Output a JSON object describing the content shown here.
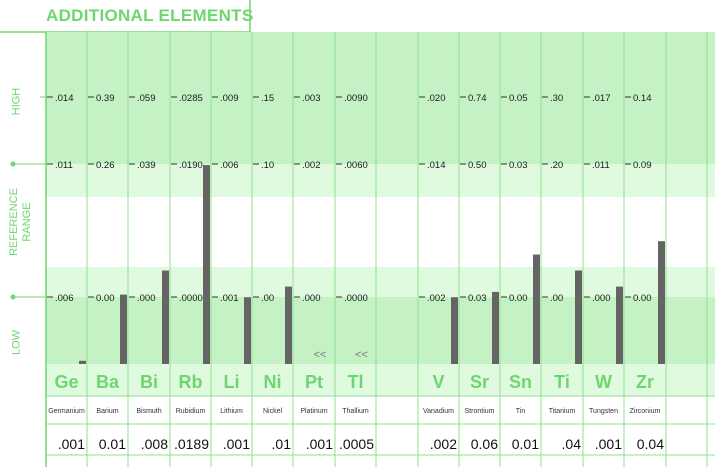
{
  "chart_data": {
    "type": "bar",
    "title": "ADDITIONAL ELEMENTS",
    "band_labels": {
      "high": "HIGH",
      "range_line1": "REFERENCE",
      "range_line2": "RANGE",
      "low": "LOW"
    },
    "colors": {
      "accent": "#6ed66e",
      "band_dark": "#c5f2c5",
      "band_mid": "#e0fae0",
      "bar": "#646464",
      "divider": "#8fe08f"
    },
    "scale_note": "Bar values are expressed as position within the reference layout (0 = bottom, 1 = top of HIGH band).",
    "elements": [
      {
        "symbol": "Ge",
        "name": "Germanium",
        "high": ".014",
        "ref_high": ".011",
        "ref_low": ".006",
        "result": ".001",
        "bar": 0.012,
        "flag": ""
      },
      {
        "symbol": "Ba",
        "name": "Barium",
        "high": "0.39",
        "ref_high": "0.26",
        "ref_low": "0.00",
        "result": "0.01",
        "bar": 0.26,
        "flag": ""
      },
      {
        "symbol": "Bi",
        "name": "Bismuth",
        "high": ".059",
        "ref_high": ".039",
        "ref_low": ".000",
        "result": ".008",
        "bar": 0.35,
        "flag": ""
      },
      {
        "symbol": "Rb",
        "name": "Rubidium",
        "high": ".0285",
        "ref_high": ".0190",
        "ref_low": ".0000",
        "result": ".0189",
        "bar": 0.745,
        "flag": ""
      },
      {
        "symbol": "Li",
        "name": "Lithium",
        "high": ".009",
        "ref_high": ".006",
        "ref_low": ".001",
        "result": ".001",
        "bar": 0.25,
        "flag": ""
      },
      {
        "symbol": "Ni",
        "name": "Nickel",
        "high": ".15",
        "ref_high": ".10",
        "ref_low": ".00",
        "result": ".01",
        "bar": 0.29,
        "flag": ""
      },
      {
        "symbol": "Pt",
        "name": "Platinum",
        "high": ".003",
        "ref_high": ".002",
        "ref_low": ".000",
        "result": ".001",
        "bar": 0,
        "flag": "<<"
      },
      {
        "symbol": "Tl",
        "name": "Thallium",
        "high": ".0090",
        "ref_high": ".0060",
        "ref_low": ".0000",
        "result": ".0005",
        "bar": 0,
        "flag": "<<"
      },
      {
        "symbol": "",
        "name": "",
        "high": "",
        "ref_high": "",
        "ref_low": "",
        "result": "",
        "bar": 0,
        "flag": ""
      },
      {
        "symbol": "V",
        "name": "Vanadium",
        "high": ".020",
        "ref_high": ".014",
        "ref_low": ".002",
        "result": ".002",
        "bar": 0.25,
        "flag": ""
      },
      {
        "symbol": "Sr",
        "name": "Strontium",
        "high": "0.74",
        "ref_high": "0.50",
        "ref_low": "0.03",
        "result": "0.06",
        "bar": 0.27,
        "flag": ""
      },
      {
        "symbol": "Sn",
        "name": "Tin",
        "high": "0.05",
        "ref_high": "0.03",
        "ref_low": "0.00",
        "result": "0.01",
        "bar": 0.41,
        "flag": ""
      },
      {
        "symbol": "Ti",
        "name": "Titanium",
        "high": ".30",
        "ref_high": ".20",
        "ref_low": ".00",
        "result": ".04",
        "bar": 0.35,
        "flag": ""
      },
      {
        "symbol": "W",
        "name": "Tungsten",
        "high": ".017",
        "ref_high": ".011",
        "ref_low": ".000",
        "result": ".001",
        "bar": 0.29,
        "flag": ""
      },
      {
        "symbol": "Zr",
        "name": "Zirconium",
        "high": "0.14",
        "ref_high": "0.09",
        "ref_low": "0.00",
        "result": "0.04",
        "bar": 0.46,
        "flag": ""
      },
      {
        "symbol": "",
        "name": "",
        "high": "",
        "ref_high": "",
        "ref_low": "",
        "result": "",
        "bar": 0,
        "flag": ""
      }
    ]
  }
}
